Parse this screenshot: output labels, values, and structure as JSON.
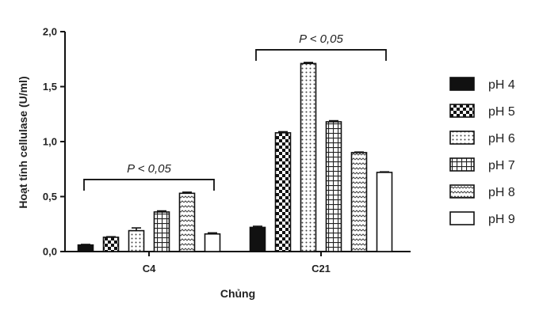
{
  "chart_data": {
    "type": "bar",
    "xlabel": "Chủng",
    "ylabel": "Hoạt tính cellulase (U/ml)",
    "ylim": [
      0,
      2.0
    ],
    "yticks": [
      "0,0",
      "0,5",
      "1,0",
      "1,5",
      "2,0"
    ],
    "grid": false,
    "legend_position": "right",
    "categories": [
      "C4",
      "C21"
    ],
    "series": [
      {
        "name": "pH 4",
        "values": [
          0.06,
          0.22
        ],
        "errors": [
          0.005,
          0.01
        ],
        "pattern": "solid"
      },
      {
        "name": "pH 5",
        "values": [
          0.13,
          1.08
        ],
        "errors": [
          0.005,
          0.01
        ],
        "pattern": "checker"
      },
      {
        "name": "pH 6",
        "values": [
          0.19,
          1.71
        ],
        "errors": [
          0.025,
          0.01
        ],
        "pattern": "dots"
      },
      {
        "name": "pH 7",
        "values": [
          0.36,
          1.18
        ],
        "errors": [
          0.01,
          0.01
        ],
        "pattern": "grid"
      },
      {
        "name": "pH 8",
        "values": [
          0.53,
          0.9
        ],
        "errors": [
          0.01,
          0.005
        ],
        "pattern": "zigzag"
      },
      {
        "name": "pH 9",
        "values": [
          0.16,
          0.72
        ],
        "errors": [
          0.01,
          0.005
        ],
        "pattern": "empty"
      }
    ],
    "annotations": [
      {
        "text": "P < 0,05",
        "category": "C4"
      },
      {
        "text": "P < 0,05",
        "category": "C21"
      }
    ]
  }
}
